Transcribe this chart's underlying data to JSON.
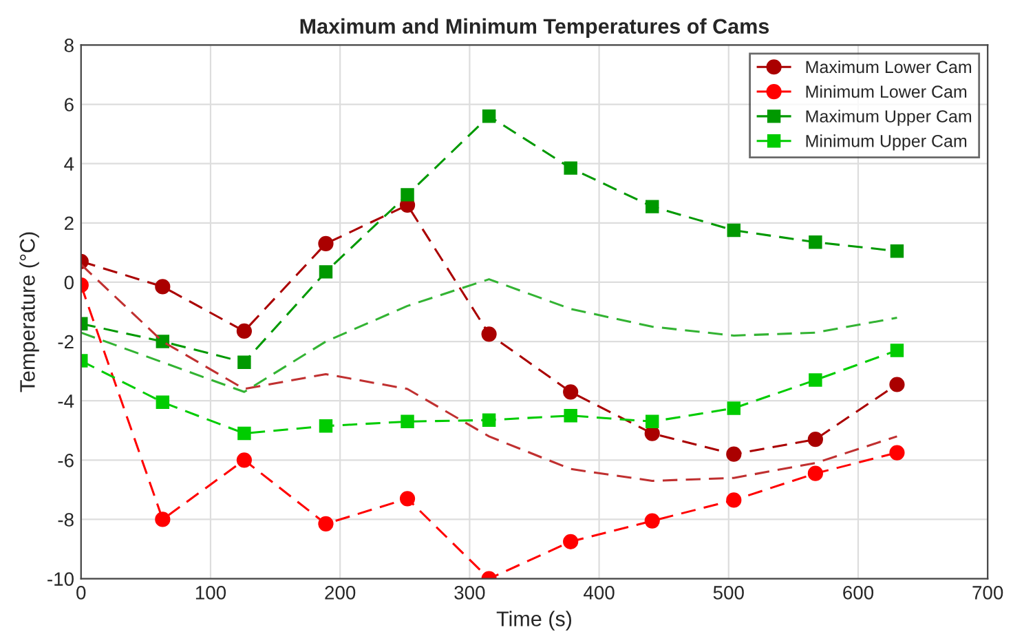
{
  "chart_data": {
    "type": "line",
    "title": "Maximum and Minimum Temperatures of Cams",
    "xlabel": "Time (s)",
    "ylabel": "Temperature (°C)",
    "x": [
      0,
      63,
      126,
      189,
      252,
      315,
      378,
      441,
      504,
      567,
      630
    ],
    "series": [
      {
        "name": "Maximum Lower Cam",
        "color": "#aa0000",
        "marker": "circle",
        "values": [
          0.7,
          -0.15,
          -1.65,
          1.3,
          2.6,
          -1.75,
          -3.7,
          -5.1,
          -5.8,
          -5.3,
          -3.45
        ]
      },
      {
        "name": "Minimum Lower Cam",
        "color": "#ff0000",
        "marker": "circle",
        "values": [
          -0.1,
          -8.0,
          -6.0,
          -8.15,
          -7.3,
          -10.0,
          -8.75,
          -8.05,
          -7.35,
          -6.45,
          -5.75
        ]
      },
      {
        "name": "Maximum Upper Cam",
        "color": "#009900",
        "marker": "square",
        "values": [
          -1.4,
          -2.0,
          -2.7,
          0.35,
          2.95,
          5.6,
          3.85,
          2.55,
          1.75,
          1.35,
          1.05
        ]
      },
      {
        "name": "Minimum Upper Cam",
        "color": "#00cc00",
        "marker": "square",
        "values": [
          -2.65,
          -4.05,
          -5.1,
          -4.85,
          -4.7,
          -4.65,
          -4.5,
          -4.7,
          -4.25,
          -3.3,
          -2.3
        ]
      },
      {
        "color": "#c03030",
        "marker": "none",
        "values": [
          0.6,
          -2.0,
          -3.6,
          -3.1,
          -3.6,
          -5.2,
          -6.3,
          -6.7,
          -6.6,
          -6.1,
          -5.2
        ]
      },
      {
        "color": "#33b333",
        "marker": "none",
        "values": [
          -1.7,
          -2.7,
          -3.7,
          -2.0,
          -0.8,
          0.1,
          -0.9,
          -1.5,
          -1.8,
          -1.7,
          -1.2
        ]
      }
    ],
    "line_style": "dashed",
    "xlim": [
      0,
      700
    ],
    "xticks": [
      0,
      100,
      200,
      300,
      400,
      500,
      600,
      700
    ],
    "ylim": [
      -10,
      8
    ],
    "yticks": [
      -10,
      -8,
      -6,
      -4,
      -2,
      0,
      2,
      4,
      6,
      8
    ],
    "grid": true,
    "legend": "top right"
  }
}
